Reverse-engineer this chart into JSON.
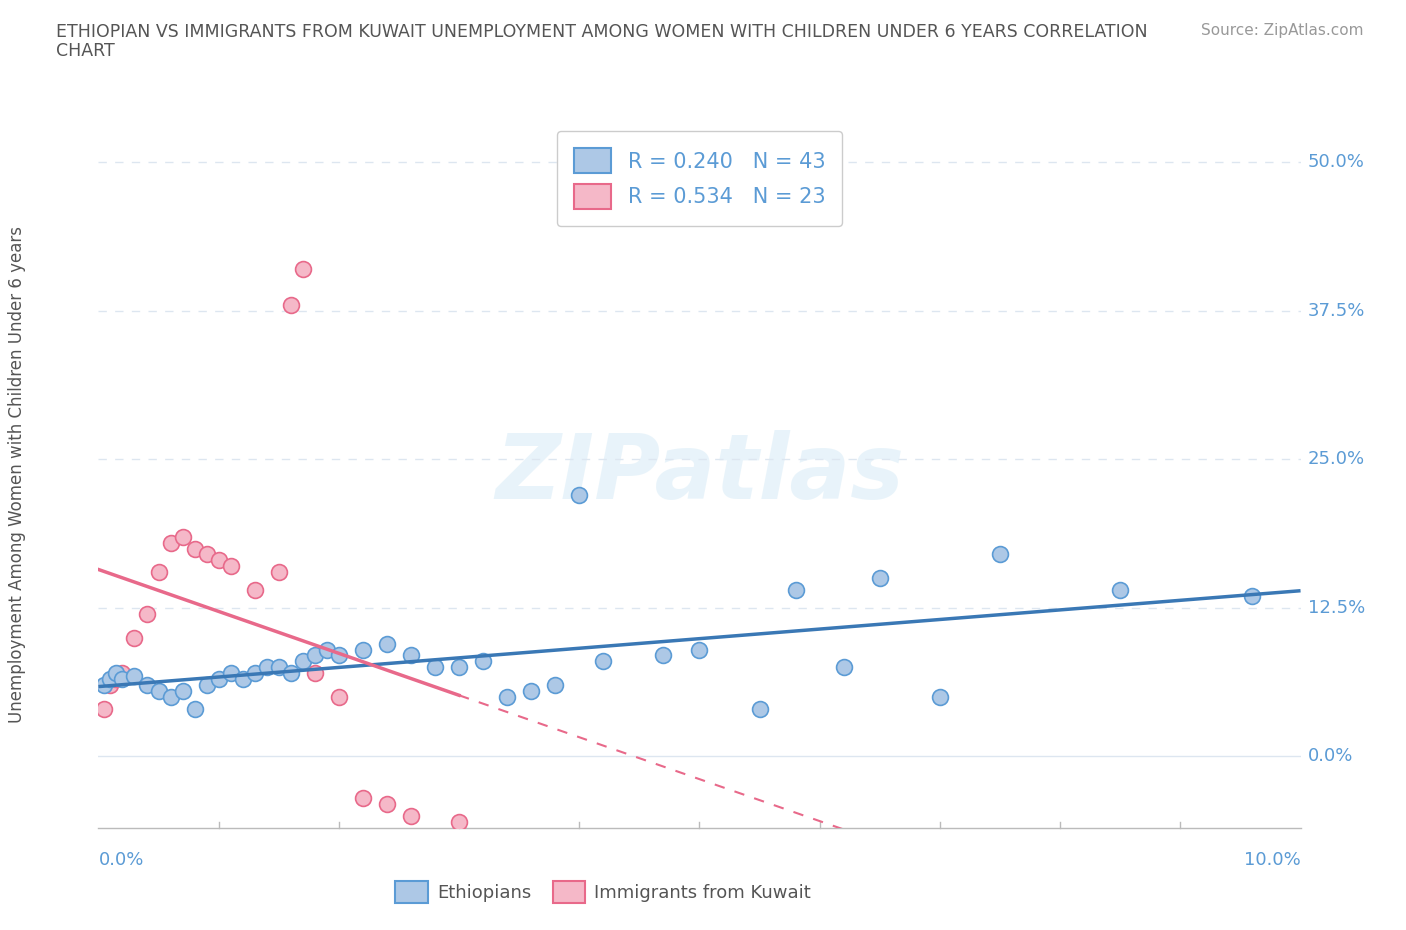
{
  "title_line1": "ETHIOPIAN VS IMMIGRANTS FROM KUWAIT UNEMPLOYMENT AMONG WOMEN WITH CHILDREN UNDER 6 YEARS CORRELATION",
  "title_line2": "CHART",
  "source": "Source: ZipAtlas.com",
  "ylabel": "Unemployment Among Women with Children Under 6 years",
  "ytick_labels": [
    "0.0%",
    "12.5%",
    "25.0%",
    "37.5%",
    "50.0%"
  ],
  "ytick_values": [
    0.0,
    0.125,
    0.25,
    0.375,
    0.5
  ],
  "xtick_left": "0.0%",
  "xtick_right": "10.0%",
  "xlim": [
    0.0,
    0.1
  ],
  "ylim": [
    -0.06,
    0.535
  ],
  "watermark": "ZIPatlas",
  "legend_r1": "R = 0.240",
  "legend_n1": "N = 43",
  "legend_r2": "R = 0.534",
  "legend_n2": "N = 23",
  "eth_face_color": "#adc8e6",
  "eth_edge_color": "#5b9bd5",
  "kuw_face_color": "#f5b8c8",
  "kuw_edge_color": "#e8698a",
  "eth_line_color": "#3a78b5",
  "kuw_line_color": "#e8698a",
  "grid_color": "#dde6f0",
  "axis_color": "#bbbbbb",
  "label_color": "#5b9bd5",
  "text_color": "#555555",
  "watermark_color": "#ddeef8",
  "eth_legend_label": "Ethiopians",
  "kuw_legend_label": "Immigrants from Kuwait",
  "ethiopian_x": [
    0.0005,
    0.001,
    0.0015,
    0.002,
    0.003,
    0.004,
    0.005,
    0.006,
    0.007,
    0.008,
    0.009,
    0.01,
    0.011,
    0.012,
    0.013,
    0.014,
    0.015,
    0.016,
    0.017,
    0.018,
    0.019,
    0.02,
    0.022,
    0.024,
    0.026,
    0.028,
    0.03,
    0.032,
    0.034,
    0.036,
    0.038,
    0.04,
    0.042,
    0.047,
    0.05,
    0.055,
    0.058,
    0.062,
    0.065,
    0.07,
    0.075,
    0.085,
    0.096
  ],
  "ethiopian_y": [
    0.06,
    0.065,
    0.07,
    0.065,
    0.068,
    0.06,
    0.055,
    0.05,
    0.055,
    0.04,
    0.06,
    0.065,
    0.07,
    0.065,
    0.07,
    0.075,
    0.075,
    0.07,
    0.08,
    0.085,
    0.09,
    0.085,
    0.09,
    0.095,
    0.085,
    0.075,
    0.075,
    0.08,
    0.05,
    0.055,
    0.06,
    0.22,
    0.08,
    0.085,
    0.09,
    0.04,
    0.14,
    0.075,
    0.15,
    0.05,
    0.17,
    0.14,
    0.135
  ],
  "kuwait_x": [
    0.0005,
    0.001,
    0.0015,
    0.002,
    0.003,
    0.004,
    0.005,
    0.006,
    0.007,
    0.008,
    0.009,
    0.01,
    0.011,
    0.013,
    0.015,
    0.016,
    0.017,
    0.018,
    0.02,
    0.022,
    0.024,
    0.026,
    0.03
  ],
  "kuwait_y": [
    0.04,
    0.06,
    0.065,
    0.07,
    0.1,
    0.12,
    0.155,
    0.18,
    0.185,
    0.175,
    0.17,
    0.165,
    0.16,
    0.14,
    0.155,
    0.38,
    0.41,
    0.07,
    0.05,
    -0.035,
    -0.04,
    -0.05,
    -0.055
  ]
}
